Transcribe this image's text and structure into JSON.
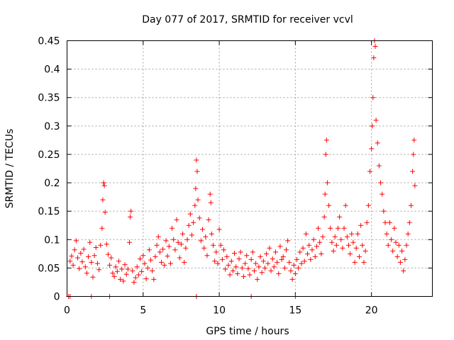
{
  "chart_data": {
    "type": "scatter",
    "title": "Day 077 of 2017, SRMTID for receiver vcvl",
    "xlabel": "GPS time / hours",
    "ylabel": "SRMTID / TECUs",
    "xlim": [
      0,
      24
    ],
    "ylim": [
      0,
      0.45
    ],
    "xticks": [
      0,
      5,
      10,
      15,
      20
    ],
    "yticks": [
      0,
      0.05,
      0.1,
      0.15,
      0.2,
      0.25,
      0.3,
      0.35,
      0.4,
      0.45
    ],
    "xtick_labels": [
      "0",
      "5",
      "10",
      "15",
      "20"
    ],
    "ytick_labels": [
      "0",
      "0.05",
      "0.1",
      "0.15",
      "0.2",
      "0.25",
      "0.3",
      "0.35",
      "0.4",
      "0.45"
    ],
    "grid": true,
    "marker": "+",
    "color": "#ff0000",
    "series": [
      {
        "name": "SRMTID",
        "points": [
          [
            0.1,
            0
          ],
          [
            0.2,
            0
          ],
          [
            1.6,
            0
          ],
          [
            2.8,
            0
          ],
          [
            8.5,
            0
          ],
          [
            12.1,
            0
          ],
          [
            15.0,
            0
          ],
          [
            0.2,
            0.062
          ],
          [
            0.3,
            0.071
          ],
          [
            0.4,
            0.055
          ],
          [
            0.5,
            0.082
          ],
          [
            0.6,
            0.098
          ],
          [
            0.7,
            0.068
          ],
          [
            0.8,
            0.049
          ],
          [
            0.9,
            0.076
          ],
          [
            1.0,
            0.061
          ],
          [
            1.1,
            0.083
          ],
          [
            1.2,
            0.052
          ],
          [
            1.3,
            0.041
          ],
          [
            1.4,
            0.07
          ],
          [
            1.5,
            0.095
          ],
          [
            1.6,
            0.06
          ],
          [
            1.7,
            0.034
          ],
          [
            1.8,
            0.072
          ],
          [
            1.9,
            0.086
          ],
          [
            2.0,
            0.058
          ],
          [
            2.1,
            0.047
          ],
          [
            2.2,
            0.09
          ],
          [
            2.3,
            0.12
          ],
          [
            2.35,
            0.17
          ],
          [
            2.4,
            0.2
          ],
          [
            2.45,
            0.195
          ],
          [
            2.5,
            0.148
          ],
          [
            2.6,
            0.092
          ],
          [
            2.7,
            0.074
          ],
          [
            2.8,
            0.055
          ],
          [
            2.9,
            0.068
          ],
          [
            3.0,
            0.041
          ],
          [
            3.1,
            0.035
          ],
          [
            3.2,
            0.052
          ],
          [
            3.3,
            0.044
          ],
          [
            3.4,
            0.062
          ],
          [
            3.5,
            0.03
          ],
          [
            3.6,
            0.048
          ],
          [
            3.7,
            0.027
          ],
          [
            3.8,
            0.056
          ],
          [
            3.9,
            0.039
          ],
          [
            4.0,
            0.048
          ],
          [
            4.1,
            0.095
          ],
          [
            4.15,
            0.14
          ],
          [
            4.2,
            0.15
          ],
          [
            4.3,
            0.045
          ],
          [
            4.4,
            0.025
          ],
          [
            4.5,
            0.033
          ],
          [
            4.6,
            0.052
          ],
          [
            4.7,
            0.038
          ],
          [
            4.8,
            0.066
          ],
          [
            4.9,
            0.044
          ],
          [
            5.0,
            0.072
          ],
          [
            5.1,
            0.058
          ],
          [
            5.2,
            0.031
          ],
          [
            5.3,
            0.05
          ],
          [
            5.4,
            0.082
          ],
          [
            5.5,
            0.064
          ],
          [
            5.6,
            0.045
          ],
          [
            5.7,
            0.03
          ],
          [
            5.8,
            0.07
          ],
          [
            5.9,
            0.09
          ],
          [
            6.0,
            0.105
          ],
          [
            6.1,
            0.078
          ],
          [
            6.2,
            0.06
          ],
          [
            6.3,
            0.083
          ],
          [
            6.4,
            0.055
          ],
          [
            6.5,
            0.098
          ],
          [
            6.6,
            0.071
          ],
          [
            6.7,
            0.088
          ],
          [
            6.8,
            0.058
          ],
          [
            6.9,
            0.12
          ],
          [
            7.0,
            0.1
          ],
          [
            7.1,
            0.082
          ],
          [
            7.2,
            0.135
          ],
          [
            7.3,
            0.095
          ],
          [
            7.4,
            0.068
          ],
          [
            7.5,
            0.092
          ],
          [
            7.6,
            0.11
          ],
          [
            7.7,
            0.06
          ],
          [
            7.8,
            0.085
          ],
          [
            7.9,
            0.1
          ],
          [
            8.0,
            0.125
          ],
          [
            8.1,
            0.145
          ],
          [
            8.2,
            0.108
          ],
          [
            8.3,
            0.13
          ],
          [
            8.4,
            0.16
          ],
          [
            8.45,
            0.19
          ],
          [
            8.5,
            0.24
          ],
          [
            8.55,
            0.22
          ],
          [
            8.6,
            0.17
          ],
          [
            8.7,
            0.138
          ],
          [
            8.8,
            0.098
          ],
          [
            8.9,
            0.118
          ],
          [
            9.0,
            0.085
          ],
          [
            9.1,
            0.105
          ],
          [
            9.2,
            0.072
          ],
          [
            9.3,
            0.135
          ],
          [
            9.4,
            0.18
          ],
          [
            9.45,
            0.165
          ],
          [
            9.5,
            0.11
          ],
          [
            9.6,
            0.09
          ],
          [
            9.7,
            0.062
          ],
          [
            9.8,
            0.078
          ],
          [
            9.9,
            0.058
          ],
          [
            10.0,
            0.118
          ],
          [
            10.1,
            0.09
          ],
          [
            10.2,
            0.065
          ],
          [
            10.3,
            0.082
          ],
          [
            10.4,
            0.048
          ],
          [
            10.5,
            0.07
          ],
          [
            10.6,
            0.055
          ],
          [
            10.7,
            0.038
          ],
          [
            10.8,
            0.062
          ],
          [
            10.9,
            0.045
          ],
          [
            11.0,
            0.076
          ],
          [
            11.1,
            0.052
          ],
          [
            11.2,
            0.04
          ],
          [
            11.3,
            0.066
          ],
          [
            11.4,
            0.078
          ],
          [
            11.5,
            0.05
          ],
          [
            11.6,
            0.035
          ],
          [
            11.7,
            0.058
          ],
          [
            11.8,
            0.072
          ],
          [
            11.9,
            0.049
          ],
          [
            12.0,
            0.038
          ],
          [
            12.1,
            0.065
          ],
          [
            12.2,
            0.078
          ],
          [
            12.3,
            0.045
          ],
          [
            12.4,
            0.058
          ],
          [
            12.5,
            0.03
          ],
          [
            12.6,
            0.052
          ],
          [
            12.7,
            0.07
          ],
          [
            12.8,
            0.042
          ],
          [
            12.9,
            0.062
          ],
          [
            13.0,
            0.05
          ],
          [
            13.1,
            0.075
          ],
          [
            13.2,
            0.058
          ],
          [
            13.3,
            0.085
          ],
          [
            13.4,
            0.045
          ],
          [
            13.5,
            0.066
          ],
          [
            13.6,
            0.052
          ],
          [
            13.7,
            0.078
          ],
          [
            13.8,
            0.06
          ],
          [
            13.9,
            0.04
          ],
          [
            14.0,
            0.088
          ],
          [
            14.1,
            0.065
          ],
          [
            14.2,
            0.07
          ],
          [
            14.3,
            0.05
          ],
          [
            14.4,
            0.082
          ],
          [
            14.5,
            0.098
          ],
          [
            14.6,
            0.06
          ],
          [
            14.7,
            0.045
          ],
          [
            14.8,
            0.03
          ],
          [
            14.9,
            0.055
          ],
          [
            15.0,
            0.04
          ],
          [
            15.1,
            0.065
          ],
          [
            15.2,
            0.05
          ],
          [
            15.3,
            0.078
          ],
          [
            15.4,
            0.058
          ],
          [
            15.5,
            0.085
          ],
          [
            15.6,
            0.062
          ],
          [
            15.7,
            0.11
          ],
          [
            15.8,
            0.075
          ],
          [
            15.9,
            0.09
          ],
          [
            16.0,
            0.065
          ],
          [
            16.1,
            0.082
          ],
          [
            16.2,
            0.1
          ],
          [
            16.3,
            0.07
          ],
          [
            16.4,
            0.088
          ],
          [
            16.5,
            0.12
          ],
          [
            16.6,
            0.095
          ],
          [
            16.7,
            0.075
          ],
          [
            16.8,
            0.105
          ],
          [
            16.9,
            0.14
          ],
          [
            16.95,
            0.18
          ],
          [
            17.0,
            0.25
          ],
          [
            17.05,
            0.275
          ],
          [
            17.1,
            0.2
          ],
          [
            17.2,
            0.16
          ],
          [
            17.3,
            0.12
          ],
          [
            17.4,
            0.095
          ],
          [
            17.5,
            0.08
          ],
          [
            17.6,
            0.105
          ],
          [
            17.7,
            0.09
          ],
          [
            17.8,
            0.12
          ],
          [
            17.9,
            0.14
          ],
          [
            18.0,
            0.1
          ],
          [
            18.1,
            0.085
          ],
          [
            18.2,
            0.12
          ],
          [
            18.3,
            0.16
          ],
          [
            18.4,
            0.105
          ],
          [
            18.5,
            0.09
          ],
          [
            18.6,
            0.075
          ],
          [
            18.7,
            0.11
          ],
          [
            18.8,
            0.095
          ],
          [
            18.9,
            0.06
          ],
          [
            19.0,
            0.085
          ],
          [
            19.1,
            0.11
          ],
          [
            19.2,
            0.07
          ],
          [
            19.3,
            0.125
          ],
          [
            19.4,
            0.09
          ],
          [
            19.5,
            0.06
          ],
          [
            19.6,
            0.08
          ],
          [
            19.7,
            0.13
          ],
          [
            19.8,
            0.16
          ],
          [
            19.9,
            0.22
          ],
          [
            20.0,
            0.26
          ],
          [
            20.05,
            0.3
          ],
          [
            20.1,
            0.35
          ],
          [
            20.15,
            0.42
          ],
          [
            20.2,
            0.45
          ],
          [
            20.25,
            0.44
          ],
          [
            20.3,
            0.31
          ],
          [
            20.4,
            0.27
          ],
          [
            20.5,
            0.23
          ],
          [
            20.6,
            0.2
          ],
          [
            20.7,
            0.18
          ],
          [
            20.8,
            0.15
          ],
          [
            20.9,
            0.13
          ],
          [
            21.0,
            0.11
          ],
          [
            21.1,
            0.09
          ],
          [
            21.2,
            0.13
          ],
          [
            21.3,
            0.1
          ],
          [
            21.4,
            0.08
          ],
          [
            21.5,
            0.12
          ],
          [
            21.6,
            0.095
          ],
          [
            21.7,
            0.07
          ],
          [
            21.8,
            0.09
          ],
          [
            21.9,
            0.06
          ],
          [
            22.0,
            0.08
          ],
          [
            22.1,
            0.045
          ],
          [
            22.2,
            0.065
          ],
          [
            22.3,
            0.09
          ],
          [
            22.4,
            0.11
          ],
          [
            22.5,
            0.13
          ],
          [
            22.6,
            0.16
          ],
          [
            22.7,
            0.22
          ],
          [
            22.75,
            0.25
          ],
          [
            22.8,
            0.275
          ],
          [
            22.85,
            0.195
          ]
        ]
      }
    ]
  }
}
